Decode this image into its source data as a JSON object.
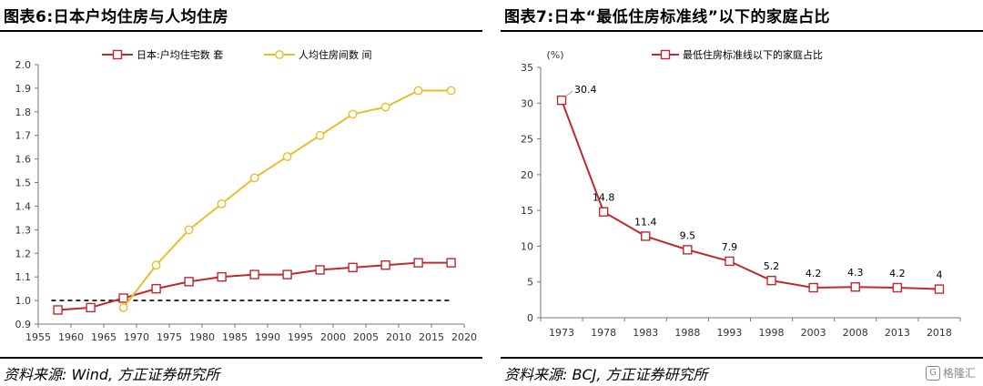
{
  "left": {
    "title": "图表6:日本户均住房与人均住房",
    "source": "资料来源: Wind, 方正证券研究所"
  },
  "right": {
    "title": "图表7:日本“最低住房标准线”以下的家庭占比",
    "source": "资料来源: BCJ, 方正证券研究所"
  },
  "watermark": "格隆汇",
  "chart_data": [
    {
      "type": "line",
      "title": "",
      "xlim": [
        1955,
        2020
      ],
      "ylim": [
        0.9,
        2.0
      ],
      "xticks": [
        1955,
        1960,
        1965,
        1970,
        1975,
        1980,
        1985,
        1990,
        1995,
        2000,
        2005,
        2010,
        2015,
        2020
      ],
      "yticks": [
        "0.9",
        "1.0",
        "1.1",
        "1.2",
        "1.3",
        "1.4",
        "1.5",
        "1.6",
        "1.7",
        "1.8",
        "1.9",
        "2.0"
      ],
      "legend_position": "top",
      "reference_line": {
        "y": 1.0,
        "style": "dashed",
        "color": "#000000"
      },
      "series": [
        {
          "name": "日本:户均住宅数 套",
          "color": "#C0292E",
          "marker": "square",
          "x": [
            1958,
            1963,
            1968,
            1973,
            1978,
            1983,
            1988,
            1993,
            1998,
            2003,
            2008,
            2013,
            2018
          ],
          "y": [
            0.96,
            0.97,
            1.01,
            1.05,
            1.08,
            1.1,
            1.11,
            1.11,
            1.13,
            1.14,
            1.15,
            1.16,
            1.16
          ]
        },
        {
          "name": "人均住房间数 间",
          "color": "#E8BE2A",
          "marker": "circle",
          "x": [
            1968,
            1973,
            1978,
            1983,
            1988,
            1993,
            1998,
            2003,
            2008,
            2013,
            2018
          ],
          "y": [
            0.97,
            1.15,
            1.3,
            1.41,
            1.52,
            1.61,
            1.7,
            1.79,
            1.82,
            1.89,
            1.89
          ]
        }
      ]
    },
    {
      "type": "line",
      "title": "",
      "ylabel": "(%)",
      "ylim": [
        0,
        35
      ],
      "yticks": [
        "0",
        "5",
        "10",
        "15",
        "20",
        "25",
        "30",
        "35"
      ],
      "categories": [
        "1973",
        "1978",
        "1983",
        "1988",
        "1993",
        "1998",
        "2003",
        "2008",
        "2013",
        "2018"
      ],
      "legend_position": "top",
      "series": [
        {
          "name": "最低住房标准线以下的家庭占比",
          "color": "#C0292E",
          "marker": "square",
          "values": [
            30.4,
            14.8,
            11.4,
            9.5,
            7.9,
            5.2,
            4.2,
            4.3,
            4.2,
            4
          ],
          "labels": [
            "30.4",
            "14.8",
            "11.4",
            "9.5",
            "7.9",
            "5.2",
            "4.2",
            "4.3",
            "4.2",
            "4"
          ]
        }
      ]
    }
  ]
}
